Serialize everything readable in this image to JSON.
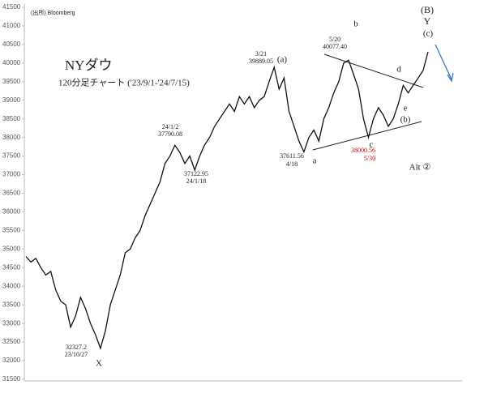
{
  "chart_data": {
    "type": "line",
    "title": "NYダウ",
    "subtitle": "120分足チャート ('23/9/1-'24/7/15)",
    "source": "(出所) Bloomberg",
    "color": "#111111",
    "values": [
      34800,
      34650,
      34750,
      34500,
      34300,
      34400,
      33900,
      33600,
      33500,
      32900,
      33200,
      33700,
      33400,
      33000,
      32700,
      32330,
      32800,
      33500,
      33900,
      34300,
      34900,
      35000,
      35300,
      35500,
      35900,
      36200,
      36500,
      36800,
      37300,
      37500,
      37790,
      37600,
      37300,
      37500,
      37123,
      37500,
      37800,
      38000,
      38300,
      38500,
      38700,
      38900,
      38700,
      39100,
      38900,
      39100,
      38800,
      39000,
      39100,
      39500,
      39889,
      39300,
      39600,
      38700,
      38300,
      37900,
      37612,
      38000,
      38200,
      37900,
      38500,
      38800,
      39200,
      39500,
      40000,
      40077,
      39700,
      39300,
      38500,
      38001,
      38500,
      38800,
      38600,
      38300,
      38500,
      38900,
      39400,
      39200,
      39400,
      39600,
      39800,
      40300
    ],
    "ylim": [
      31500,
      41500
    ],
    "yticks": [
      31500,
      32000,
      32500,
      33000,
      33500,
      34000,
      34500,
      35000,
      35500,
      36000,
      36500,
      37000,
      37500,
      38000,
      38500,
      39000,
      39500,
      40000,
      40500,
      41000,
      41500
    ],
    "annotations": [
      "32327.2",
      "23/10/27",
      "X",
      "24/1/2",
      "37790.08",
      "37122.95",
      "24/1/18",
      "3/21",
      "39889.05",
      "(a)",
      "5/20",
      "40077.40",
      "b",
      "37611.56",
      "4/18",
      "a",
      "38000.56",
      "5/30",
      "c",
      "d",
      "e",
      "(b)",
      "(B)",
      "Y",
      "(c)",
      "Alt ②"
    ]
  }
}
